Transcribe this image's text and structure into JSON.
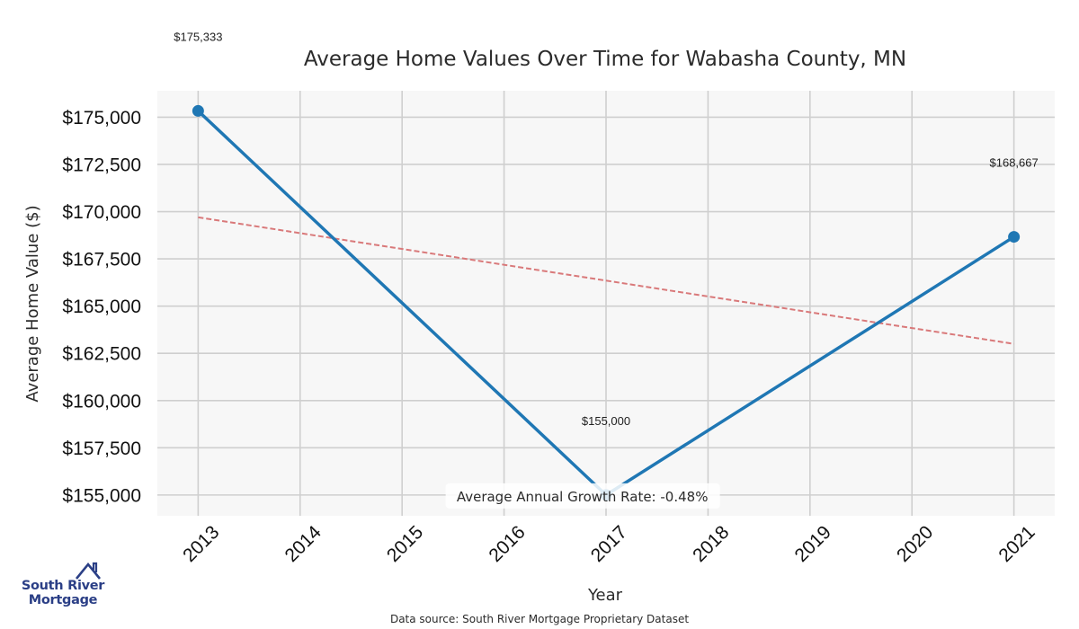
{
  "chart_data": {
    "type": "line",
    "title": "Average Home Values Over Time for Wabasha County, MN",
    "xlabel": "Year",
    "ylabel": "Average Home Value ($)",
    "categories": [
      "2013",
      "2014",
      "2015",
      "2016",
      "2017",
      "2018",
      "2019",
      "2020",
      "2021"
    ],
    "x": [
      2013,
      2014,
      2015,
      2016,
      2017,
      2018,
      2019,
      2020,
      2021
    ],
    "xlim": [
      2012.6,
      2021.4
    ],
    "ylim": [
      153900,
      176400
    ],
    "yticks": [
      155000,
      157500,
      160000,
      162500,
      165000,
      167500,
      170000,
      172500,
      175000
    ],
    "ytick_labels": [
      "$155,000",
      "$157,500",
      "$160,000",
      "$162,500",
      "$165,000",
      "$167,500",
      "$170,000",
      "$172,500",
      "$175,000"
    ],
    "grid": true,
    "series": [
      {
        "name": "Average Home Value",
        "x": [
          2013,
          2017,
          2021
        ],
        "values": [
          175333,
          155000,
          168667
        ],
        "labels": [
          "$175,333",
          "$155,000",
          "$168,667"
        ],
        "color": "#1f77b4",
        "style": "solid"
      },
      {
        "name": "Trend",
        "x": [
          2013,
          2021
        ],
        "values": [
          169700,
          163000
        ],
        "color": "#d9797a",
        "style": "dashed"
      }
    ],
    "annotations": [
      {
        "text": "Average Annual Growth Rate: -0.48%",
        "x": 2016.75,
        "y": 155000
      }
    ],
    "colors": {
      "plot_background": "#f7f7f7",
      "grid": "#cfcfcf",
      "line": "#1f77b4",
      "trend": "#d9797a"
    }
  },
  "footer": {
    "source": "Data source: South River Mortgage Proprietary Dataset"
  },
  "logo": {
    "line1": "South River",
    "line2": "Mortgage",
    "color": "#2b3f86",
    "icon": "house-icon"
  }
}
